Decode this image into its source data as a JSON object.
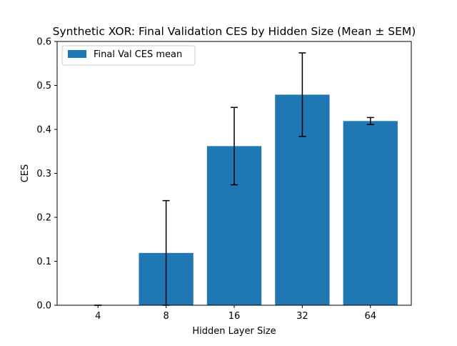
{
  "chart_data": {
    "type": "bar",
    "title": "Synthetic XOR: Final Validation CES by Hidden Size (Mean ± SEM)",
    "xlabel": "Hidden Layer Size",
    "ylabel": "CES",
    "categories": [
      "4",
      "8",
      "16",
      "32",
      "64"
    ],
    "series": [
      {
        "name": "Final Val CES mean",
        "values": [
          0.0,
          0.119,
          0.362,
          0.479,
          0.419
        ],
        "error": [
          0.0,
          0.119,
          0.088,
          0.095,
          0.008
        ]
      }
    ],
    "ylim": [
      0,
      0.6
    ],
    "yticks": [
      "0.0",
      "0.1",
      "0.2",
      "0.3",
      "0.4",
      "0.5",
      "0.6"
    ],
    "grid": false,
    "legend_position": "top-left",
    "colors": {
      "bar": "#1f77b4",
      "error_bar": "#000000",
      "axis": "#000000",
      "legend_border": "#cccccc"
    }
  }
}
